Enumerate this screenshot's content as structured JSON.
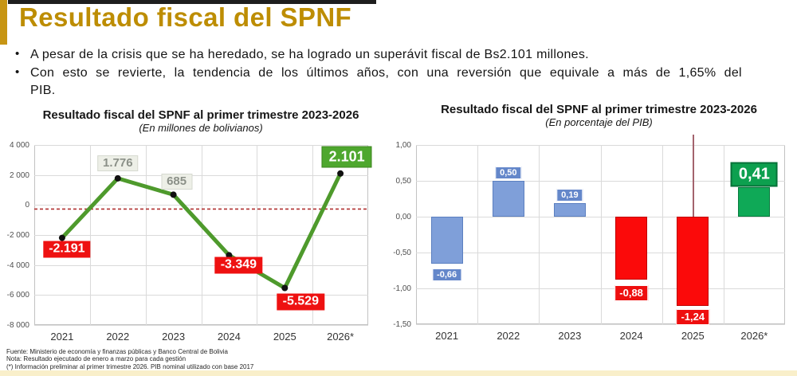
{
  "header": {
    "title": "Resultado fiscal del SPNF"
  },
  "bullets": [
    "A pesar de la crisis que se ha heredado, se ha logrado un superávit fiscal de Bs2.101 millones.",
    "Con esto se revierte, la tendencia de los últimos años, con una reversión que equivale a más de 1,65% del\nPIB."
  ],
  "chart_data": [
    {
      "type": "line",
      "title": "Resultado fiscal del SPNF al primer trimestre 2023-2026",
      "subtitle": "(En millones de bolivianos)",
      "categories": [
        "2021",
        "2022",
        "2023",
        "2024",
        "2025",
        "2026*"
      ],
      "values": [
        -2191,
        1776,
        685,
        -3349,
        -5529,
        2101
      ],
      "labels": [
        "-2.191",
        "1.776",
        "685",
        "-3.349",
        "-5.529",
        "2.101"
      ],
      "label_styles": [
        "negative",
        "neutral",
        "neutral",
        "negative",
        "negative",
        "positive"
      ],
      "ylim": [
        -8000,
        4000
      ],
      "yticks": [
        "4 000",
        "2 000",
        "0",
        "-2 000",
        "-4 000",
        "-6 000",
        "-8 000"
      ],
      "ytick_values": [
        4000,
        2000,
        0,
        -2000,
        -4000,
        -6000,
        -8000
      ],
      "reference_line_value": -270,
      "line_color": "#4e9a2c",
      "marker_color": "#111111",
      "reference_line_color": "#b03030",
      "grid": true,
      "legend": "none"
    },
    {
      "type": "bar",
      "title": "Resultado fiscal del SPNF al primer trimestre 2023-2026",
      "subtitle": "(En porcentaje del PIB)",
      "categories": [
        "2021",
        "2022",
        "2023",
        "2024",
        "2025",
        "2026*"
      ],
      "values": [
        -0.66,
        0.5,
        0.19,
        -0.88,
        -1.24,
        0.41
      ],
      "labels": [
        "-0,66",
        "0,50",
        "0,19",
        "-0,88",
        "-1,24",
        "0,41"
      ],
      "bar_colors": [
        "#7f9fd9",
        "#7f9fd9",
        "#7f9fd9",
        "#fb0a0a",
        "#fb0a0a",
        "#0fa957"
      ],
      "bar_border_colors": [
        "#5b7fc0",
        "#5b7fc0",
        "#5b7fc0",
        "#c00000",
        "#c00000",
        "#077a3d"
      ],
      "label_box_styles": [
        "blue",
        "blue",
        "blue",
        "red",
        "red",
        "green"
      ],
      "ylim": [
        -1.5,
        1.0
      ],
      "yticks": [
        "1,00",
        "0,50",
        "0,00",
        "-0,50",
        "-1,00",
        "-1,50"
      ],
      "ytick_values": [
        1.0,
        0.5,
        0.0,
        -0.5,
        -1.0,
        -1.5
      ],
      "annotation_line": {
        "category": "2025",
        "color": "#a3636d"
      },
      "grid": true,
      "legend": "none"
    }
  ],
  "footer": {
    "lines": [
      "Fuente: Ministerio de economía y finanzas públicas y Banco Central de Bolivia",
      "Nota: Resultado ejecutado de enero a marzo para cada gestión",
      "(*) Información preliminar al primer trimestre 2026. PIB nominal utilizado con base 2017"
    ]
  }
}
